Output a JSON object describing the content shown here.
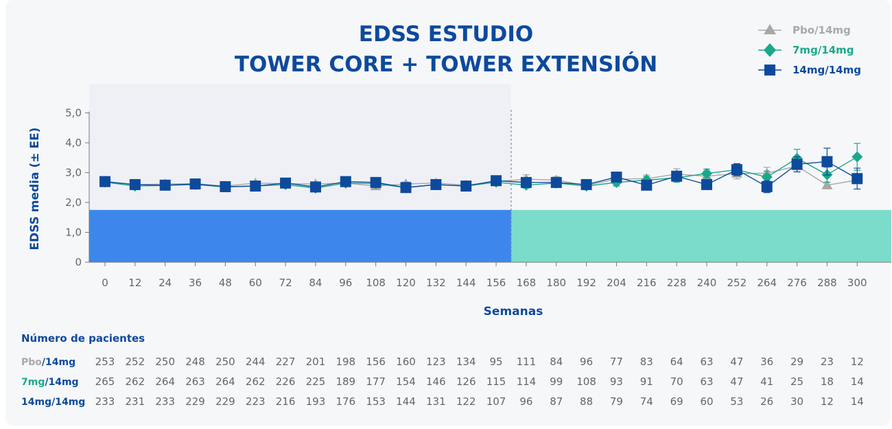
{
  "colors": {
    "title": "#0d4a9c",
    "pbo": "#a8a8a8",
    "mg7": "#1aa88a",
    "mg14": "#0d4a9c",
    "core_band": "#3d87ec",
    "ext_band": "#7bdccc",
    "core_bg": "#eff0f6"
  },
  "chart_data": {
    "type": "line",
    "title_lines": [
      "EDSS ESTUDIO",
      "TOWER CORE + TOWER EXTENSIÓN"
    ],
    "xlabel": "Semanas",
    "ylabel": "EDSS media (± EE)",
    "ylim": [
      0,
      5
    ],
    "y_ticks": [
      "0",
      "1,0",
      "2,0",
      "3,0",
      "4,0",
      "5,0"
    ],
    "x": [
      0,
      12,
      24,
      36,
      48,
      60,
      72,
      84,
      96,
      108,
      120,
      132,
      144,
      156,
      168,
      180,
      192,
      204,
      216,
      228,
      240,
      252,
      264,
      276,
      288,
      300
    ],
    "core_end_week": 162,
    "band_top": 1.75,
    "legend_position": "top-right",
    "series": [
      {
        "name": "Pbo/14mg",
        "marker": "triangle",
        "color_key": "pbo",
        "values": [
          2.7,
          2.6,
          2.62,
          2.63,
          2.55,
          2.65,
          2.63,
          2.62,
          2.65,
          2.55,
          2.62,
          2.65,
          2.58,
          2.7,
          2.78,
          2.75,
          2.57,
          2.78,
          2.8,
          2.95,
          2.88,
          2.97,
          2.98,
          3.22,
          2.58,
          2.75
        ],
        "err": [
          0.05,
          0.05,
          0.05,
          0.05,
          0.05,
          0.05,
          0.05,
          0.06,
          0.06,
          0.07,
          0.07,
          0.08,
          0.08,
          0.09,
          0.15,
          0.12,
          0.12,
          0.12,
          0.12,
          0.18,
          0.18,
          0.18,
          0.2,
          0.2,
          0.1,
          0.1
        ]
      },
      {
        "name": "7mg/14mg",
        "marker": "diamond",
        "color_key": "mg7",
        "values": [
          2.68,
          2.55,
          2.57,
          2.6,
          2.52,
          2.55,
          2.6,
          2.48,
          2.65,
          2.63,
          2.5,
          2.6,
          2.55,
          2.68,
          2.58,
          2.65,
          2.55,
          2.67,
          2.75,
          2.83,
          2.97,
          3.1,
          2.85,
          3.48,
          2.93,
          3.53
        ],
        "err": [
          0.05,
          0.05,
          0.05,
          0.05,
          0.05,
          0.05,
          0.05,
          0.06,
          0.06,
          0.07,
          0.07,
          0.08,
          0.08,
          0.09,
          0.1,
          0.1,
          0.12,
          0.12,
          0.12,
          0.15,
          0.15,
          0.18,
          0.2,
          0.3,
          0.25,
          0.45
        ]
      },
      {
        "name": "14mg/14mg",
        "marker": "square",
        "color_key": "mg14",
        "values": [
          2.7,
          2.6,
          2.58,
          2.62,
          2.53,
          2.55,
          2.65,
          2.52,
          2.7,
          2.67,
          2.5,
          2.6,
          2.55,
          2.73,
          2.67,
          2.67,
          2.6,
          2.85,
          2.58,
          2.88,
          2.6,
          3.1,
          2.53,
          3.28,
          3.37,
          2.8
        ],
        "err": [
          0.05,
          0.05,
          0.05,
          0.05,
          0.05,
          0.05,
          0.05,
          0.06,
          0.06,
          0.07,
          0.07,
          0.08,
          0.08,
          0.09,
          0.1,
          0.1,
          0.12,
          0.12,
          0.12,
          0.15,
          0.15,
          0.2,
          0.2,
          0.25,
          0.45,
          0.35
        ]
      }
    ]
  },
  "patients": {
    "heading": "Número de pacientes",
    "rows": [
      {
        "label_a": "Pbo",
        "label_b": "/14mg",
        "color_key": "pbo",
        "values": [
          "253",
          "252",
          "250",
          "248",
          "250",
          "244",
          "227",
          "201",
          "198",
          "156",
          "160",
          "123",
          "134",
          "95",
          "111",
          "84",
          "96",
          "77",
          "83",
          "64",
          "63",
          "47",
          "36",
          "29",
          "23",
          "12"
        ]
      },
      {
        "label_a": "7mg",
        "label_b": "/14mg",
        "color_key": "mg7",
        "values": [
          "265",
          "262",
          "264",
          "263",
          "264",
          "262",
          "226",
          "225",
          "189",
          "177",
          "154",
          "146",
          "126",
          "115",
          "114",
          "99",
          "108",
          "93",
          "91",
          "70",
          "63",
          "47",
          "41",
          "25",
          "18",
          "14"
        ]
      },
      {
        "label_a": "14mg/14mg",
        "label_b": "",
        "color_key": "mg14",
        "values": [
          "233",
          "231",
          "233",
          "229",
          "229",
          "223",
          "216",
          "193",
          "176",
          "153",
          "144",
          "131",
          "122",
          "107",
          "96",
          "87",
          "88",
          "79",
          "74",
          "69",
          "60",
          "53",
          "26",
          "30",
          "12",
          "14"
        ]
      }
    ]
  }
}
